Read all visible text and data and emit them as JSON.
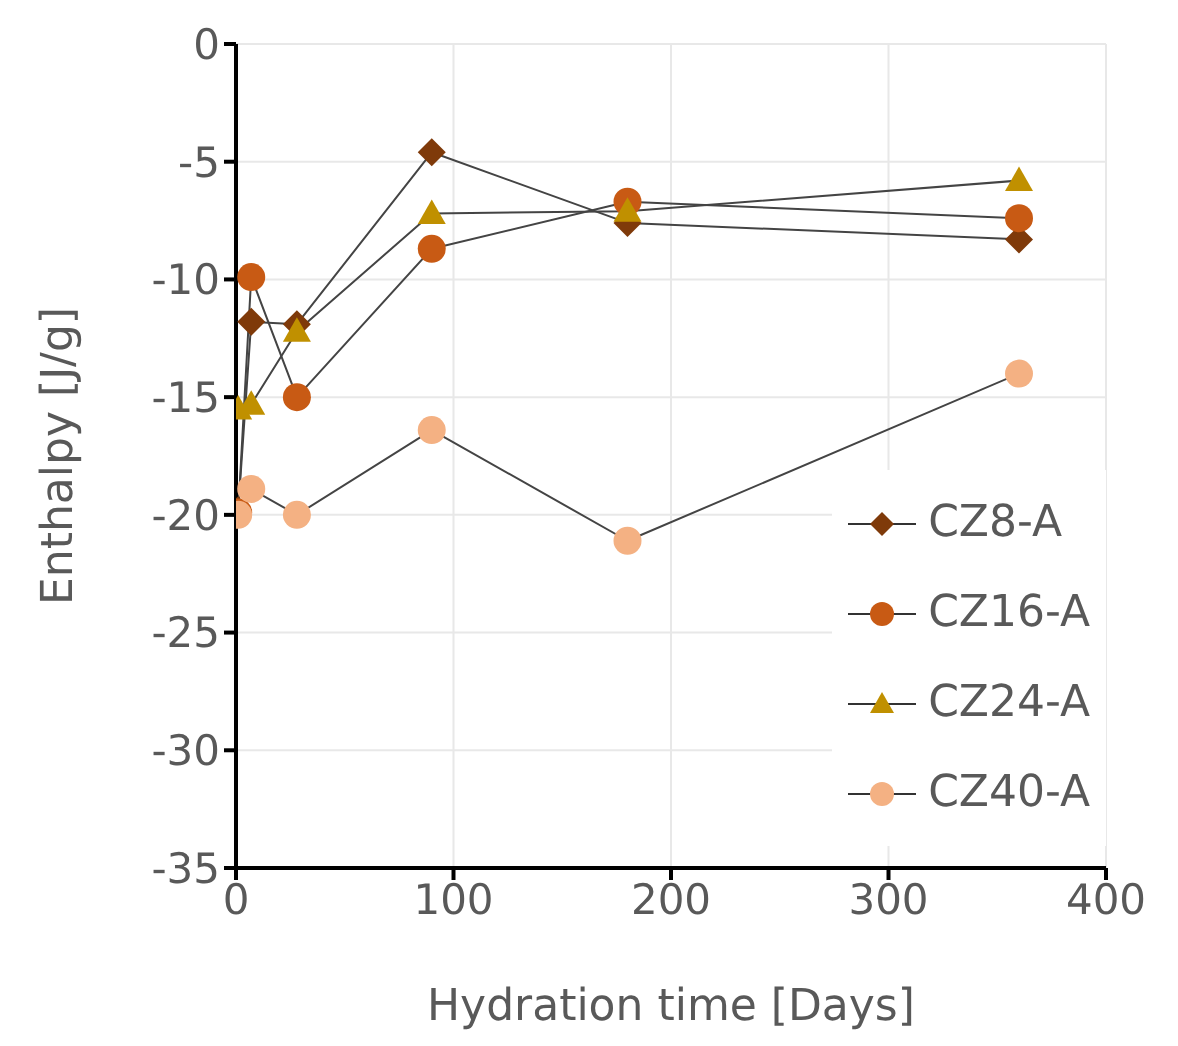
{
  "chart_data": {
    "type": "line",
    "xlabel": "Hydration time [Days]",
    "ylabel": "Enthalpy [J/g]",
    "xlim": [
      0,
      400
    ],
    "xticks": [
      0,
      100,
      200,
      300,
      400
    ],
    "ylim": [
      -35,
      0
    ],
    "yticks": [
      -35,
      -30,
      -25,
      -20,
      -15,
      -10,
      -5,
      0
    ],
    "grid": true,
    "legend": "bottom right",
    "series": [
      {
        "name": "CZ8-A",
        "color": "#7f3a0a",
        "marker": "diamond",
        "x": [
          1,
          7,
          28,
          90,
          180,
          360
        ],
        "values": [
          -19.8,
          -11.8,
          -11.9,
          -4.6,
          -7.6,
          -8.3
        ]
      },
      {
        "name": "CZ16-A",
        "color": "#c85a14",
        "marker": "circle",
        "x": [
          1,
          7,
          28,
          90,
          180,
          360
        ],
        "values": [
          -19.9,
          -9.9,
          -15.0,
          -8.7,
          -6.7,
          -7.4
        ]
      },
      {
        "name": "CZ24-A",
        "color": "#c09000",
        "marker": "triangle",
        "x": [
          1,
          7,
          28,
          90,
          180,
          360
        ],
        "values": [
          -15.5,
          -15.3,
          -12.2,
          -7.2,
          -7.1,
          -5.8
        ]
      },
      {
        "name": "CZ40-A",
        "color": "#f4b183",
        "marker": "circle",
        "x": [
          1,
          7,
          28,
          90,
          180,
          360
        ],
        "values": [
          -20.0,
          -18.9,
          -20.0,
          -16.4,
          -21.1,
          -14.0
        ]
      }
    ]
  }
}
